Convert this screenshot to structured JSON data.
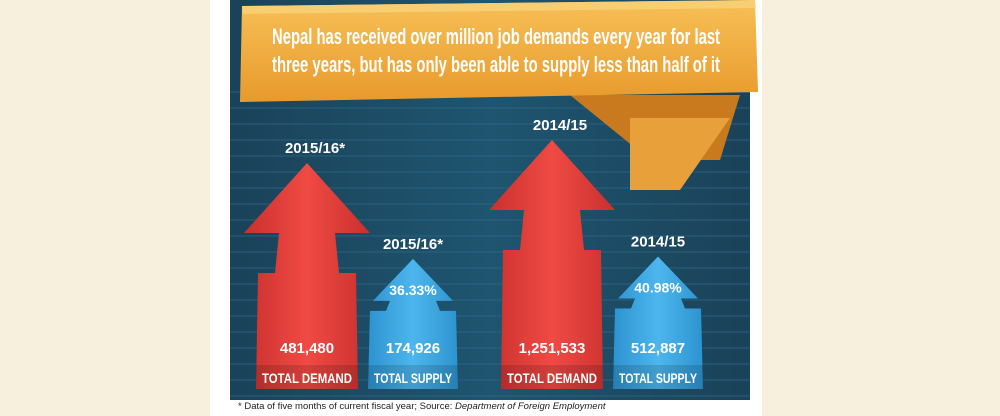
{
  "headline": "Nepal has received over million job demands every year for last three years, but has only been able to supply less than half of it",
  "headline_lines": [
    "Nepal has received over million job demands every year for last",
    "three years, but has only been able to supply less than half of it"
  ],
  "footnote": {
    "note": "* Data of five months of current fiscal year;",
    "source_label": "Source:",
    "source": "Department of Foreign Employment"
  },
  "colors": {
    "background": "#1c4a63",
    "demand": "#e2403c",
    "supply": "#3ca8e4",
    "banner": "#f0a93a",
    "label_text": "#ffffff"
  },
  "chart_data": {
    "type": "bar",
    "title": "Nepal has received over million job demands every year for last three years, but has only been able to supply less than half of it",
    "categories": [
      "2015/16*",
      "2014/15"
    ],
    "series": [
      {
        "name": "TOTAL DEMAND",
        "values": [
          481480,
          1251533
        ],
        "labels": [
          "481,480",
          "1,251,533"
        ]
      },
      {
        "name": "TOTAL SUPPLY",
        "values": [
          174926,
          512887
        ],
        "labels": [
          "174,926",
          "512,887"
        ],
        "supply_percent": [
          36.33,
          40.98
        ],
        "percent_labels": [
          "36.33%",
          "40.98%"
        ]
      }
    ],
    "year_labels": [
      "2015/16*",
      "2015/16*",
      "2014/15",
      "2014/15"
    ],
    "xlabel": "",
    "ylabel": ""
  }
}
